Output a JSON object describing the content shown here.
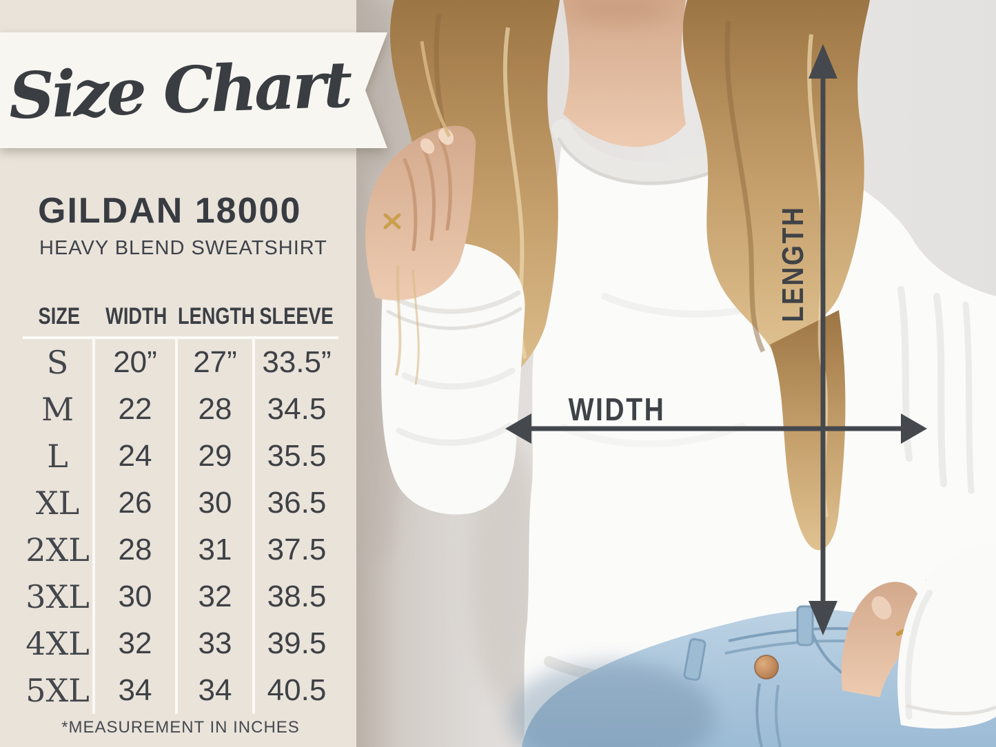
{
  "banner": {
    "title": "Size Chart"
  },
  "product": {
    "name": "GILDAN 18000",
    "subtitle": "HEAVY BLEND SWEATSHIRT"
  },
  "chart_data": {
    "type": "table",
    "columns": [
      "SIZE",
      "WIDTH",
      "LENGTH",
      "SLEEVE"
    ],
    "rows": [
      [
        "S",
        "20”",
        "27”",
        "33.5”"
      ],
      [
        "M",
        "22",
        "28",
        "34.5"
      ],
      [
        "L",
        "24",
        "29",
        "35.5"
      ],
      [
        "XL",
        "26",
        "30",
        "36.5"
      ],
      [
        "2XL",
        "28",
        "31",
        "37.5"
      ],
      [
        "3XL",
        "30",
        "32",
        "38.5"
      ],
      [
        "4XL",
        "32",
        "33",
        "39.5"
      ],
      [
        "5XL",
        "34",
        "34",
        "40.5"
      ]
    ],
    "footnote": "*MEASUREMENT IN INCHES"
  },
  "photo": {
    "length_label": "LENGTH",
    "width_label": "WIDTH"
  },
  "colors": {
    "panel_bg": "#e9e3da",
    "ribbon_bg": "#f8f6f1",
    "text_dark": "#3c4045",
    "arrow": "#45484d",
    "wall": "#e4e1de",
    "sweatshirt": "#fbfbfa",
    "denim": "#aecbe0",
    "hair_blonde": "#c49c69",
    "skin": "#e6c0a4",
    "button_copper": "#c08a5e"
  }
}
